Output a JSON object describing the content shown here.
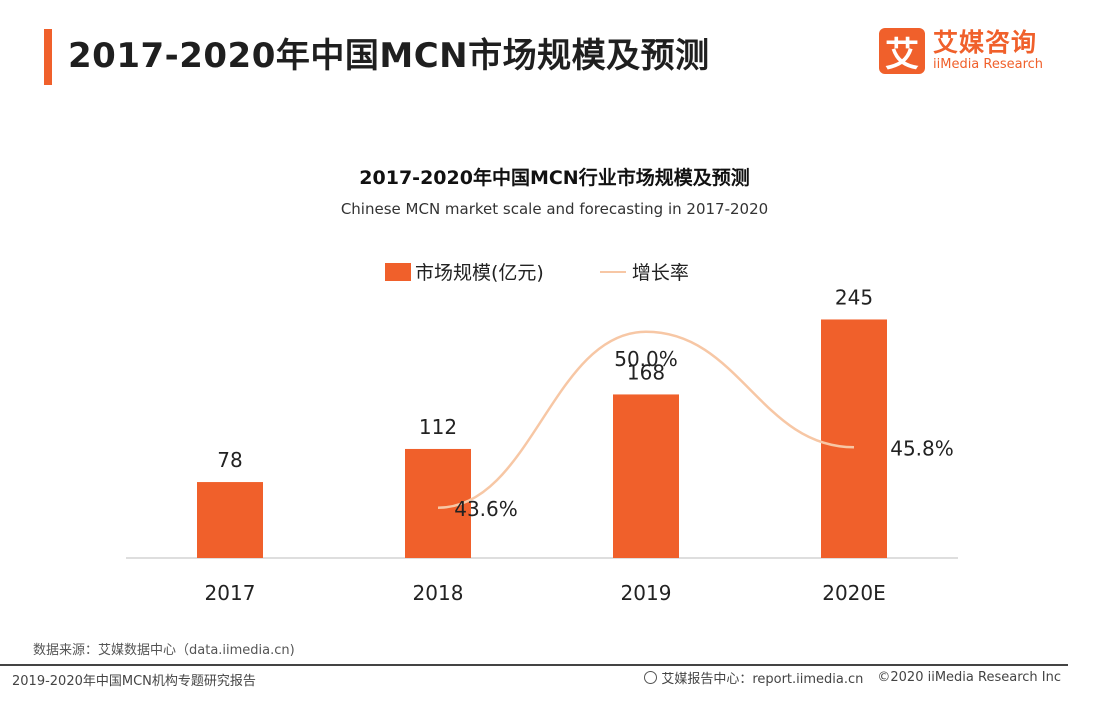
{
  "header": {
    "title": "2017-2020年中国MCN市场规模及预测"
  },
  "brand": {
    "logo_char": "艾",
    "name_cn": "艾媒咨询",
    "name_en": "iiMedia Research",
    "color": "#f0602b"
  },
  "chart_data": {
    "type": "bar",
    "title": "2017-2020年中国MCN行业市场规模及预测",
    "subtitle": "Chinese MCN market scale and forecasting in 2017-2020",
    "categories": [
      "2017",
      "2018",
      "2019",
      "2020E"
    ],
    "series": [
      {
        "name": "市场规模(亿元)",
        "type": "bar",
        "values": [
          78,
          112,
          168,
          245
        ],
        "labels": [
          "78",
          "112",
          "168",
          "245"
        ],
        "color": "#f0602b"
      },
      {
        "name": "增长率",
        "type": "line",
        "values": [
          null,
          43.6,
          50.0,
          45.8
        ],
        "labels": [
          "",
          "43.6%",
          "50.0%",
          "45.8%"
        ],
        "color": "#f7c7a5"
      }
    ],
    "legend": "top-center",
    "grid": false,
    "ylim": [
      0,
      265
    ],
    "ylim_secondary": [
      42.5,
      50.5
    ]
  },
  "footer": {
    "source": "数据来源：艾媒数据中心（data.iimedia.cn)",
    "report": "2019-2020年中国MCN机构专题研究报告",
    "report_center": "艾媒报告中心：report.iimedia.cn",
    "copyright": "©2020  iiMedia Research  Inc"
  }
}
